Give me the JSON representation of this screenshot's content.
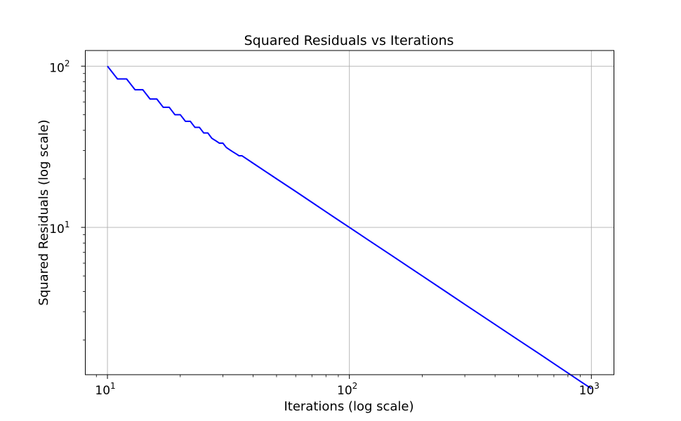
{
  "chart_data": {
    "type": "line",
    "title": "Squared Residuals vs Iterations",
    "xlabel": "Iterations (log scale)",
    "ylabel": "Squared Residuals (log scale)",
    "xscale": "log",
    "yscale": "log",
    "xlim": [
      8.1,
      1240
    ],
    "ylim": [
      1.22,
      125
    ],
    "grid": true,
    "x_ticks": [
      {
        "value": 10,
        "base": "10",
        "exp": "1"
      },
      {
        "value": 100,
        "base": "10",
        "exp": "2"
      },
      {
        "value": 1000,
        "base": "10",
        "exp": "3"
      }
    ],
    "y_ticks": [
      {
        "value": 10,
        "base": "10",
        "exp": "1"
      },
      {
        "value": 100,
        "base": "10",
        "exp": "2"
      }
    ],
    "series": [
      {
        "color": "#0000ff",
        "x": [
          10,
          11,
          12,
          13,
          14,
          15,
          16,
          17,
          18,
          19,
          20,
          21,
          22,
          23,
          24,
          25,
          26,
          27,
          28,
          29,
          30,
          31,
          32,
          33,
          34,
          35,
          36,
          40,
          50,
          60,
          70,
          80,
          90,
          100,
          120,
          150,
          200,
          250,
          300,
          400,
          500,
          600,
          700,
          800,
          900,
          1000
        ],
        "y": [
          100,
          83.3,
          83.3,
          71.4,
          71.4,
          62.5,
          62.5,
          55.6,
          55.6,
          50,
          50,
          45.5,
          45.5,
          41.7,
          41.7,
          38.5,
          38.5,
          35.7,
          34.5,
          33.3,
          33.3,
          31.3,
          30.3,
          29.4,
          28.6,
          27.8,
          27.8,
          25,
          20,
          16.7,
          14.3,
          12.5,
          11.1,
          10,
          8.33,
          6.67,
          5,
          4,
          3.33,
          2.5,
          2,
          1.67,
          1.43,
          1.25,
          1.11,
          1
        ]
      }
    ]
  }
}
